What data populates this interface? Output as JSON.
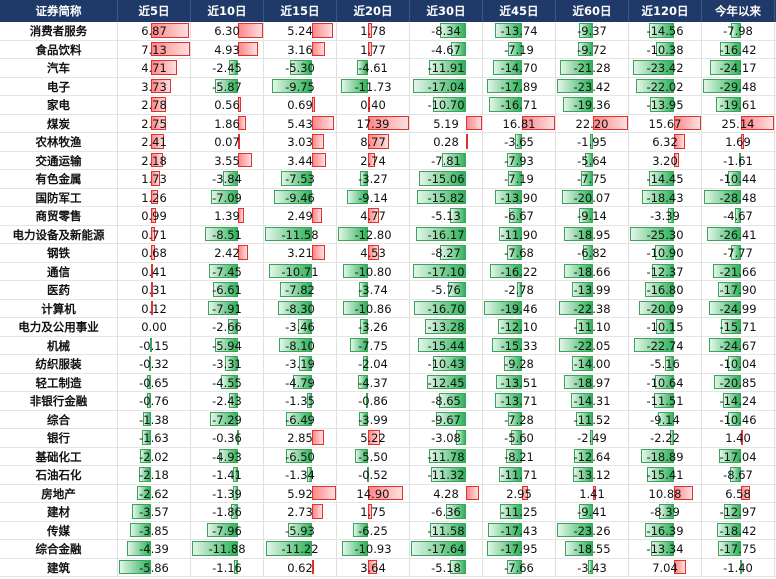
{
  "table": {
    "header": [
      "证券简称",
      "近5日",
      "近10日",
      "近15日",
      "近20日",
      "近30日",
      "近45日",
      "近60日",
      "近120日",
      "今年以来"
    ],
    "rows": [
      [
        "消费者服务",
        "6.87",
        "6.30",
        "5.24",
        "1.78",
        "-8.34",
        "-13.74",
        "-9.37",
        "-14.56",
        "-7.98"
      ],
      [
        "食品饮料",
        "7.13",
        "4.93",
        "3.16",
        "1.77",
        "-4.67",
        "-7.19",
        "-9.72",
        "-10.38",
        "-16.42"
      ],
      [
        "汽车",
        "4.71",
        "-2.45",
        "-5.30",
        "-4.61",
        "-11.91",
        "-14.70",
        "-21.28",
        "-23.42",
        "-24.17"
      ],
      [
        "电子",
        "3.73",
        "-5.87",
        "-9.75",
        "-11.73",
        "-17.04",
        "-17.89",
        "-23.42",
        "-22.02",
        "-29.48"
      ],
      [
        "家电",
        "2.78",
        "0.56",
        "0.69",
        "0.40",
        "-10.70",
        "-16.71",
        "-19.36",
        "-13.95",
        "-19.61"
      ],
      [
        "煤炭",
        "2.75",
        "1.86",
        "5.43",
        "17.39",
        "5.19",
        "16.81",
        "22.20",
        "15.67",
        "25.14"
      ],
      [
        "农林牧渔",
        "2.41",
        "0.07",
        "3.03",
        "8.77",
        "0.28",
        "-3.65",
        "-1.95",
        "6.32",
        "1.69"
      ],
      [
        "交通运输",
        "2.18",
        "3.55",
        "3.44",
        "2.74",
        "-7.81",
        "-7.93",
        "-5.64",
        "3.20",
        "-1.61"
      ],
      [
        "有色金属",
        "1.73",
        "-3.84",
        "-7.53",
        "-3.27",
        "-15.06",
        "-7.19",
        "-7.75",
        "-14.45",
        "-10.44"
      ],
      [
        "国防军工",
        "1.26",
        "-7.09",
        "-9.46",
        "-9.14",
        "-15.82",
        "-13.90",
        "-20.07",
        "-18.43",
        "-28.48"
      ],
      [
        "商贸零售",
        "0.99",
        "1.39",
        "2.49",
        "4.77",
        "-5.13",
        "-6.67",
        "-9.14",
        "-3.39",
        "-4.67"
      ],
      [
        "电力设备及新能源",
        "0.71",
        "-8.51",
        "-11.58",
        "-12.80",
        "-16.17",
        "-11.90",
        "-18.95",
        "-25.30",
        "-26.41"
      ],
      [
        "钢铁",
        "0.68",
        "2.42",
        "3.21",
        "4.53",
        "-8.27",
        "-7.68",
        "-6.82",
        "-10.90",
        "-7.77"
      ],
      [
        "通信",
        "0.41",
        "-7.45",
        "-10.71",
        "-10.80",
        "-17.10",
        "-16.22",
        "-18.66",
        "-12.37",
        "-21.66"
      ],
      [
        "医药",
        "0.31",
        "-6.61",
        "-7.82",
        "-3.74",
        "-5.76",
        "-2.78",
        "-13.99",
        "-16.80",
        "-17.90"
      ],
      [
        "计算机",
        "0.12",
        "-7.91",
        "-8.30",
        "-10.86",
        "-16.70",
        "-19.46",
        "-22.38",
        "-20.09",
        "-24.99"
      ],
      [
        "电力及公用事业",
        "0.00",
        "-2.66",
        "-3.46",
        "-3.26",
        "-13.28",
        "-12.10",
        "-11.10",
        "-10.15",
        "-15.71"
      ],
      [
        "机械",
        "-0.15",
        "-5.94",
        "-8.10",
        "-7.75",
        "-15.44",
        "-15.33",
        "-22.05",
        "-22.74",
        "-24.67"
      ],
      [
        "纺织服装",
        "-0.32",
        "-3.31",
        "-3.19",
        "-2.04",
        "-10.43",
        "-9.28",
        "-14.00",
        "-5.16",
        "-10.04"
      ],
      [
        "轻工制造",
        "-0.65",
        "-4.55",
        "-4.79",
        "-4.37",
        "-12.45",
        "-13.51",
        "-18.97",
        "-10.64",
        "-20.85"
      ],
      [
        "非银行金融",
        "-0.76",
        "-2.43",
        "-1.35",
        "-0.86",
        "-8.65",
        "-13.71",
        "-14.31",
        "-11.51",
        "-14.24"
      ],
      [
        "综合",
        "-1.38",
        "-7.29",
        "-6.49",
        "-3.99",
        "-9.67",
        "-7.28",
        "-11.52",
        "-9.14",
        "-10.46"
      ],
      [
        "银行",
        "-1.63",
        "-0.36",
        "2.85",
        "5.22",
        "-3.08",
        "-5.60",
        "-2.49",
        "-2.22",
        "1.40"
      ],
      [
        "基础化工",
        "-2.02",
        "-4.93",
        "-6.50",
        "-5.50",
        "-11.78",
        "-8.21",
        "-12.64",
        "-18.89",
        "-17.04"
      ],
      [
        "石油石化",
        "-2.18",
        "-1.41",
        "-1.34",
        "-0.52",
        "-11.32",
        "-11.71",
        "-13.12",
        "-15.41",
        "-8.67"
      ],
      [
        "房地产",
        "-2.62",
        "-1.39",
        "5.92",
        "14.90",
        "4.28",
        "2.95",
        "1.41",
        "10.88",
        "6.58"
      ],
      [
        "建材",
        "-3.57",
        "-1.86",
        "2.73",
        "1.75",
        "-6.36",
        "-11.25",
        "-9.41",
        "-8.39",
        "-12.97"
      ],
      [
        "传媒",
        "-3.85",
        "-7.96",
        "-5.93",
        "-6.25",
        "-11.58",
        "-17.43",
        "-23.26",
        "-16.39",
        "-18.42"
      ],
      [
        "综合金融",
        "-4.39",
        "-11.88",
        "-11.22",
        "-10.93",
        "-17.64",
        "-17.95",
        "-18.55",
        "-13.34",
        "-17.75"
      ],
      [
        "建筑",
        "-5.86",
        "-1.16",
        "0.62",
        "3.64",
        "-5.18",
        "-7.66",
        "-3.43",
        "7.04",
        "-1.40"
      ]
    ]
  }
}
